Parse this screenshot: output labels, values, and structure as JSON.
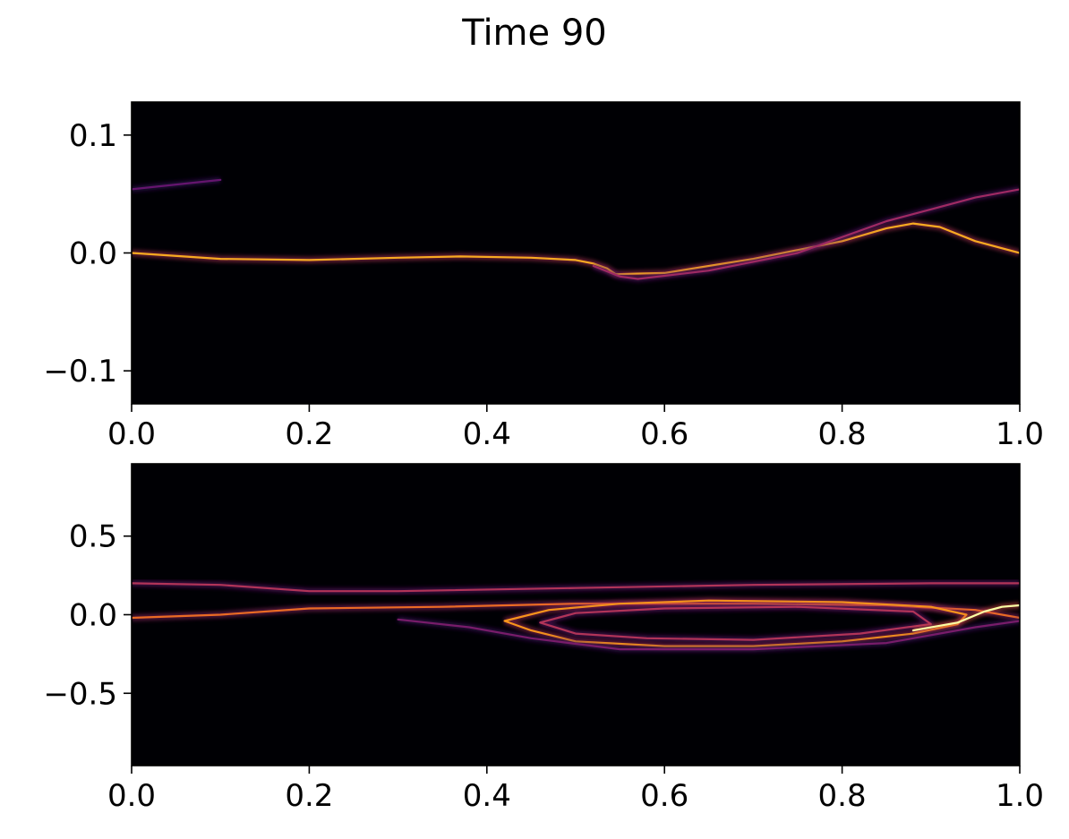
{
  "title": "Time 90",
  "colormap": "inferno",
  "background_color": "#000004",
  "chart_data": [
    {
      "type": "heatmap",
      "panel": "top",
      "xlim": [
        0.0,
        1.0
      ],
      "ylim": [
        -0.128,
        0.128
      ],
      "xticks": [
        0.0,
        0.2,
        0.4,
        0.6,
        0.8,
        1.0
      ],
      "xtick_labels": [
        "0.0",
        "0.2",
        "0.4",
        "0.6",
        "0.8",
        "1.0"
      ],
      "yticks": [
        0.1,
        0.0,
        -0.1
      ],
      "ytick_labels": [
        "0.1",
        "0.0",
        "−0.1"
      ],
      "grid": false,
      "features": [
        {
          "name": "main filament",
          "intensity": 0.85,
          "points": [
            [
              0.0,
              0.0
            ],
            [
              0.1,
              -0.005
            ],
            [
              0.2,
              -0.006
            ],
            [
              0.3,
              -0.004
            ],
            [
              0.37,
              -0.003
            ],
            [
              0.45,
              -0.004
            ],
            [
              0.5,
              -0.006
            ],
            [
              0.52,
              -0.009
            ],
            [
              0.535,
              -0.013
            ],
            [
              0.545,
              -0.018
            ],
            [
              0.6,
              -0.017
            ],
            [
              0.7,
              -0.005
            ],
            [
              0.8,
              0.01
            ],
            [
              0.85,
              0.021
            ],
            [
              0.88,
              0.025
            ],
            [
              0.91,
              0.022
            ],
            [
              0.95,
              0.01
            ],
            [
              1.0,
              0.0
            ]
          ]
        },
        {
          "name": "upper faint filament",
          "intensity": 0.3,
          "points": [
            [
              0.0,
              0.054
            ],
            [
              0.05,
              0.058
            ],
            [
              0.1,
              0.062
            ]
          ]
        },
        {
          "name": "secondary filament",
          "intensity": 0.45,
          "points": [
            [
              0.52,
              -0.011
            ],
            [
              0.55,
              -0.02
            ],
            [
              0.57,
              -0.022
            ],
            [
              0.65,
              -0.015
            ],
            [
              0.75,
              0.0
            ],
            [
              0.85,
              0.027
            ],
            [
              0.9,
              0.037
            ],
            [
              0.95,
              0.047
            ],
            [
              1.0,
              0.054
            ]
          ]
        }
      ]
    },
    {
      "type": "heatmap",
      "panel": "bottom",
      "xlim": [
        0.0,
        1.0
      ],
      "ylim": [
        -0.96,
        0.96
      ],
      "xticks": [
        0.0,
        0.2,
        0.4,
        0.6,
        0.8,
        1.0
      ],
      "xtick_labels": [
        "0.0",
        "0.2",
        "0.4",
        "0.6",
        "0.8",
        "1.0"
      ],
      "yticks": [
        0.5,
        0.0,
        -0.5
      ],
      "ytick_labels": [
        "0.5",
        "0.0",
        "−0.5"
      ],
      "grid": false,
      "features": [
        {
          "name": "top band",
          "intensity": 0.5,
          "points": [
            [
              0.0,
              0.2
            ],
            [
              0.1,
              0.19
            ],
            [
              0.2,
              0.15
            ],
            [
              0.3,
              0.15
            ],
            [
              0.5,
              0.17
            ],
            [
              0.7,
              0.19
            ],
            [
              0.9,
              0.2
            ],
            [
              1.0,
              0.2
            ]
          ]
        },
        {
          "name": "lower band",
          "intensity": 0.7,
          "points": [
            [
              0.0,
              -0.02
            ],
            [
              0.1,
              0.0
            ],
            [
              0.2,
              0.04
            ],
            [
              0.35,
              0.05
            ],
            [
              0.5,
              0.07
            ],
            [
              0.55,
              0.07
            ],
            [
              0.7,
              0.07
            ],
            [
              0.85,
              0.06
            ],
            [
              0.95,
              0.03
            ],
            [
              1.0,
              -0.02
            ]
          ]
        },
        {
          "name": "vortex outer ring",
          "intensity": 0.8,
          "points": [
            [
              0.42,
              -0.04
            ],
            [
              0.45,
              -0.1
            ],
            [
              0.5,
              -0.17
            ],
            [
              0.6,
              -0.2
            ],
            [
              0.7,
              -0.2
            ],
            [
              0.8,
              -0.17
            ],
            [
              0.88,
              -0.12
            ],
            [
              0.93,
              -0.06
            ],
            [
              0.94,
              0.0
            ],
            [
              0.9,
              0.05
            ],
            [
              0.8,
              0.08
            ],
            [
              0.65,
              0.09
            ],
            [
              0.55,
              0.07
            ],
            [
              0.47,
              0.03
            ],
            [
              0.42,
              -0.04
            ]
          ]
        },
        {
          "name": "vortex inner ring",
          "intensity": 0.5,
          "points": [
            [
              0.46,
              -0.05
            ],
            [
              0.5,
              -0.12
            ],
            [
              0.58,
              -0.15
            ],
            [
              0.7,
              -0.16
            ],
            [
              0.82,
              -0.12
            ],
            [
              0.9,
              -0.06
            ],
            [
              0.88,
              0.02
            ],
            [
              0.75,
              0.05
            ],
            [
              0.6,
              0.04
            ],
            [
              0.5,
              0.01
            ],
            [
              0.46,
              -0.05
            ]
          ]
        },
        {
          "name": "outer wrap",
          "intensity": 0.35,
          "points": [
            [
              0.3,
              -0.03
            ],
            [
              0.38,
              -0.08
            ],
            [
              0.45,
              -0.15
            ],
            [
              0.55,
              -0.22
            ],
            [
              0.7,
              -0.22
            ],
            [
              0.85,
              -0.18
            ],
            [
              0.95,
              -0.08
            ],
            [
              1.0,
              -0.04
            ]
          ]
        },
        {
          "name": "right edge bulge",
          "intensity": 1.0,
          "points": [
            [
              0.88,
              -0.1
            ],
            [
              0.93,
              -0.05
            ],
            [
              0.96,
              0.02
            ],
            [
              0.98,
              0.05
            ],
            [
              1.0,
              0.06
            ]
          ]
        }
      ]
    }
  ]
}
